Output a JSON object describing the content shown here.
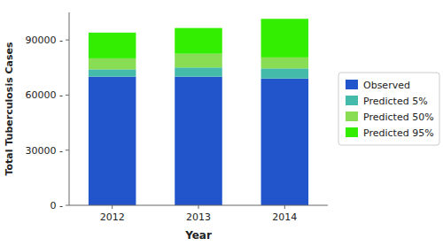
{
  "chart_data": {
    "type": "bar",
    "stacked": true,
    "xlabel": "Year",
    "ylabel": "Total Tuberculosis Cases",
    "categories": [
      "2012",
      "2013",
      "2014"
    ],
    "series": [
      {
        "name": "Observed",
        "color": "#2255cc",
        "values": [
          70000,
          70000,
          69000
        ]
      },
      {
        "name": "Predicted 5%",
        "color": "#44bbaa",
        "values": [
          4000,
          5000,
          5500
        ]
      },
      {
        "name": "Predicted 50%",
        "color": "#88dd55",
        "values": [
          6000,
          7500,
          6000
        ]
      },
      {
        "name": "Predicted 95%",
        "color": "#33ee00",
        "values": [
          14000,
          14000,
          21000
        ]
      }
    ],
    "ylim": [
      0,
      105000
    ],
    "yticks": [
      {
        "value": 0,
        "label": "0 -"
      },
      {
        "value": 30000,
        "label": "30000 -"
      },
      {
        "value": 60000,
        "label": "60000 -"
      },
      {
        "value": 90000,
        "label": "90000 -"
      }
    ],
    "grid": false,
    "legend": "right"
  }
}
